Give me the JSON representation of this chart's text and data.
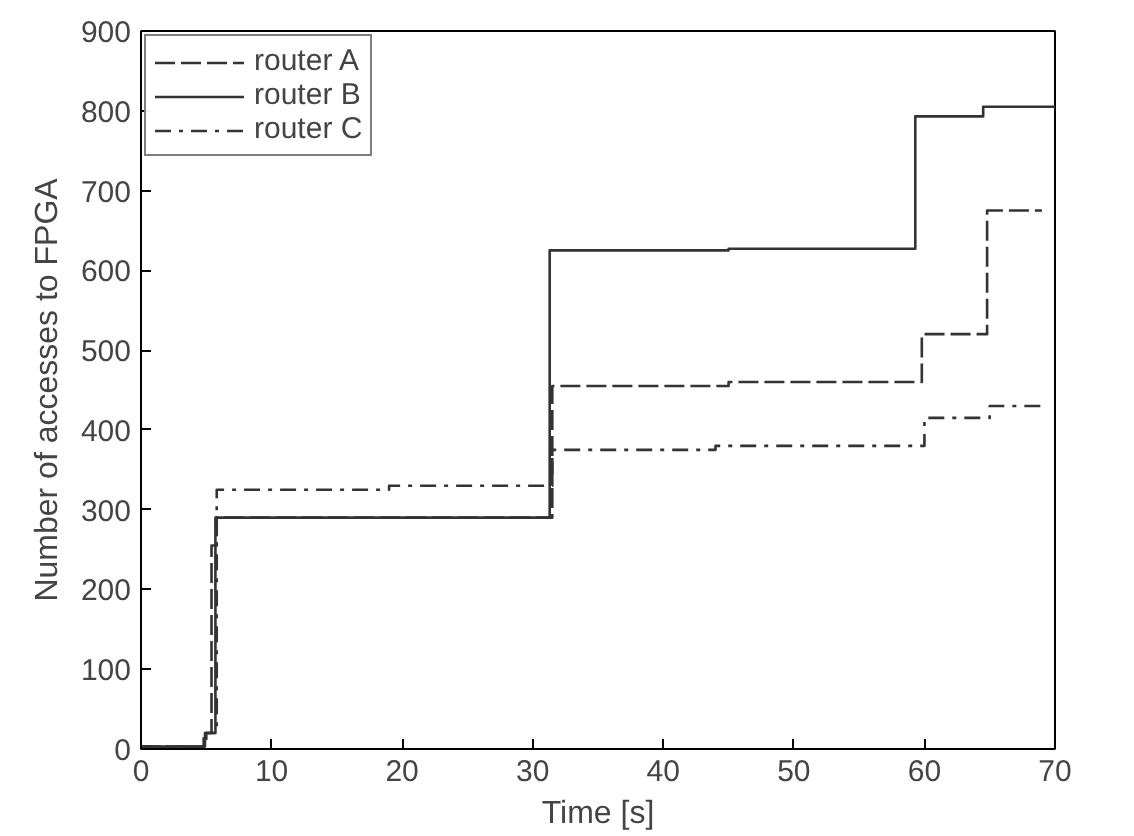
{
  "chart_data": {
    "type": "step",
    "xlabel": "Time [s]",
    "ylabel": "Number of accesses to FPGA",
    "xlim": [
      0,
      70
    ],
    "ylim": [
      0,
      900
    ],
    "xticks": [
      0,
      10,
      20,
      30,
      40,
      50,
      60,
      70
    ],
    "yticks": [
      0,
      100,
      200,
      300,
      400,
      500,
      600,
      700,
      800,
      900
    ],
    "grid": false,
    "legend": "top left",
    "series": [
      {
        "name": "router A",
        "color": "#333333",
        "line_style": "dashed",
        "x": [
          0,
          4.8,
          5.4,
          5.8,
          31.5,
          45,
          59.8,
          64.8,
          69
        ],
        "values": [
          3,
          20,
          255,
          290,
          455,
          460,
          520,
          675,
          675
        ]
      },
      {
        "name": "router B",
        "color": "#333333",
        "line_style": "solid",
        "x": [
          0,
          4.9,
          5.7,
          31.3,
          45,
          59.3,
          64.5,
          70
        ],
        "values": [
          3,
          20,
          290,
          625,
          627,
          793,
          805,
          805
        ]
      },
      {
        "name": "router C",
        "color": "#333333",
        "line_style": "dashdot",
        "x": [
          0,
          5.0,
          5.8,
          19,
          31.5,
          44,
          60,
          65,
          69
        ],
        "values": [
          3,
          20,
          325,
          330,
          375,
          380,
          415,
          430,
          430
        ]
      }
    ]
  }
}
